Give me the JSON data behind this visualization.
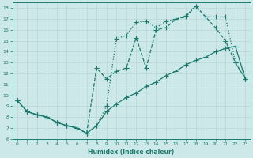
{
  "xlabel": "Humidex (Indice chaleur)",
  "bg_color": "#cce8e8",
  "line_color": "#1a7a6e",
  "grid_color": "#b8d8d8",
  "xlim": [
    -0.5,
    23.5
  ],
  "ylim": [
    6,
    18.5
  ],
  "xticks": [
    0,
    1,
    2,
    3,
    4,
    5,
    6,
    7,
    8,
    9,
    10,
    11,
    12,
    13,
    14,
    15,
    16,
    17,
    18,
    19,
    20,
    21,
    22,
    23
  ],
  "yticks": [
    6,
    7,
    8,
    9,
    10,
    11,
    12,
    13,
    14,
    15,
    16,
    17,
    18
  ],
  "line_dotted_x": [
    0,
    1,
    2,
    3,
    4,
    5,
    6,
    7,
    8,
    9,
    10,
    11,
    12,
    13,
    14,
    15,
    16,
    17,
    18,
    19,
    20,
    21,
    22,
    23
  ],
  "line_dotted_y": [
    9.5,
    8.5,
    8.2,
    8.0,
    7.5,
    7.2,
    7.0,
    6.5,
    7.2,
    9.0,
    15.2,
    15.5,
    16.7,
    16.8,
    16.2,
    16.8,
    17.0,
    17.3,
    18.2,
    17.2,
    17.2,
    17.2,
    13.0,
    11.5
  ],
  "line_dashed_x": [
    0,
    1,
    2,
    3,
    4,
    5,
    6,
    7,
    8,
    9,
    10,
    11,
    12,
    13,
    14,
    15,
    16,
    17,
    18,
    19,
    20,
    21,
    22,
    23
  ],
  "line_dashed_y": [
    9.5,
    8.5,
    8.2,
    8.0,
    7.5,
    7.2,
    7.0,
    6.5,
    12.5,
    11.5,
    12.2,
    12.5,
    15.3,
    12.5,
    16.0,
    16.2,
    17.0,
    17.2,
    18.2,
    17.2,
    16.2,
    15.0,
    13.0,
    11.5
  ],
  "line_solid_x": [
    0,
    1,
    2,
    3,
    4,
    5,
    6,
    7,
    8,
    9,
    10,
    11,
    12,
    13,
    14,
    15,
    16,
    17,
    18,
    19,
    20,
    21,
    22,
    23
  ],
  "line_solid_y": [
    9.5,
    8.5,
    8.2,
    8.0,
    7.5,
    7.2,
    7.0,
    6.5,
    7.2,
    8.5,
    9.2,
    9.8,
    10.2,
    10.8,
    11.2,
    11.8,
    12.2,
    12.8,
    13.2,
    13.5,
    14.0,
    14.3,
    14.5,
    11.5
  ]
}
